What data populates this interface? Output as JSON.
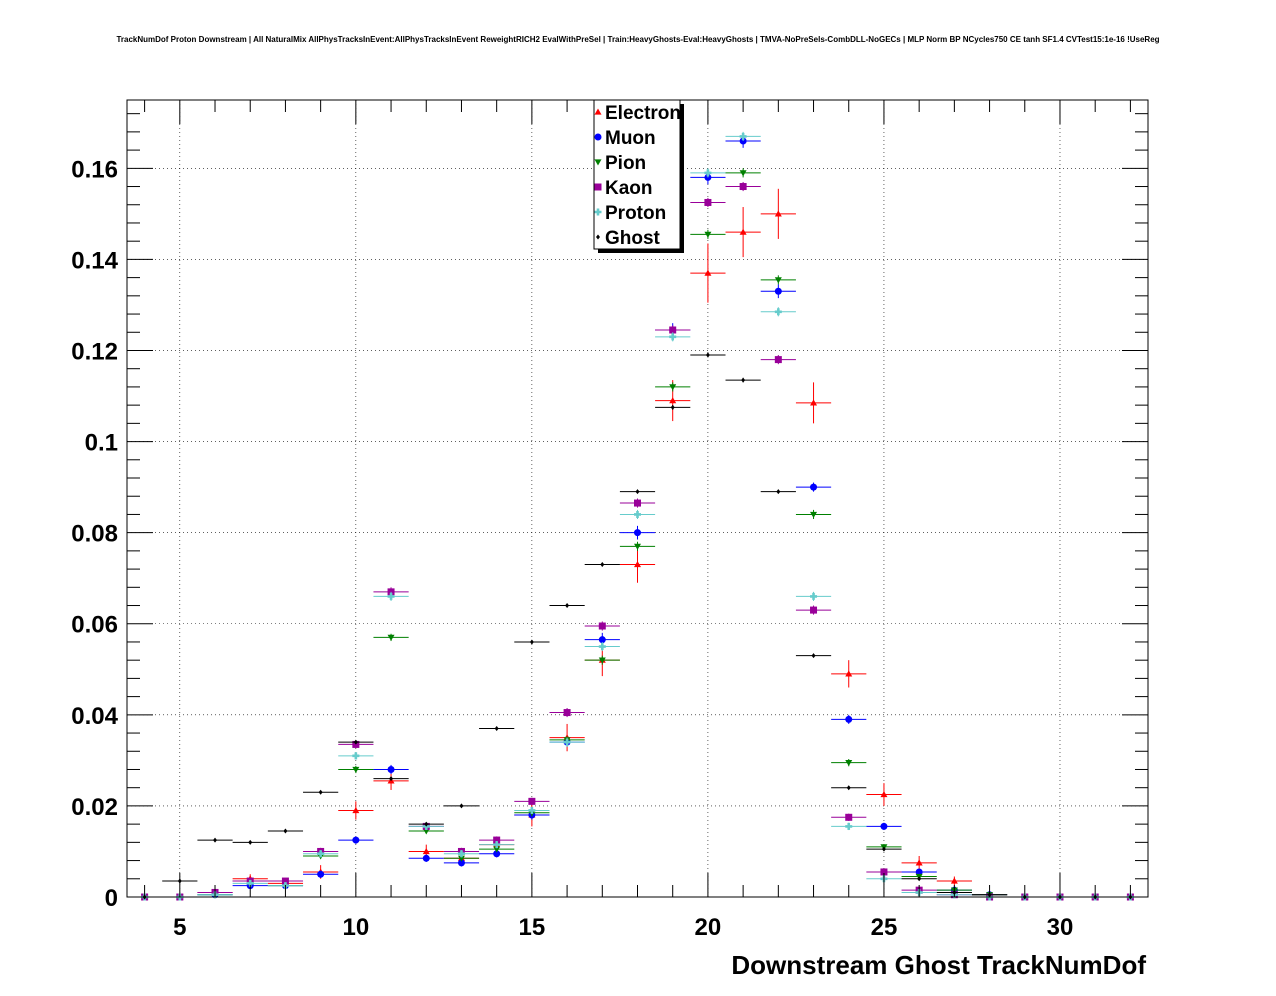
{
  "chart_data": {
    "type": "scatter",
    "title": "TrackNumDof Proton Downstream | All NaturalMix AllPhysTracksInEvent:AllPhysTracksInEvent ReweightRICH2 EvalWithPreSel | Train:HeavyGhosts-Eval:HeavyGhosts | TMVA-NoPreSels-CombDLL-NoGECs | MLP Norm BP NCycles750 CE tanh SF1.4 CVTest15:1e-16 !UseReg",
    "xlabel": "Downstream Ghost TrackNumDof",
    "ylabel": "",
    "xlim": [
      3.5,
      32.5
    ],
    "ylim": [
      0,
      0.175
    ],
    "grid": true,
    "legend_position": "top-center",
    "x_ticks": [
      5,
      10,
      15,
      20,
      25,
      30
    ],
    "x_tick_labels": [
      "5",
      "10",
      "15",
      "20",
      "25",
      "30"
    ],
    "y_ticks": [
      0,
      0.02,
      0.04,
      0.06,
      0.08,
      0.1,
      0.12,
      0.14,
      0.16
    ],
    "y_tick_labels": [
      "0",
      "0.02",
      "0.04",
      "0.06",
      "0.08",
      "0.1",
      "0.12",
      "0.14",
      "0.16"
    ],
    "x": [
      4,
      5,
      6,
      7,
      8,
      9,
      10,
      11,
      12,
      13,
      14,
      15,
      16,
      17,
      18,
      19,
      20,
      21,
      22,
      23,
      24,
      25,
      26,
      27,
      28,
      29,
      30,
      31,
      32
    ],
    "series": [
      {
        "name": "Electron",
        "color": "#ff0000",
        "marker": "triangle-up",
        "values": [
          0,
          0,
          0.001,
          0.004,
          0.003,
          0.0055,
          0.019,
          0.0255,
          0.01,
          0.0085,
          0.0115,
          0.018,
          0.035,
          0.052,
          0.073,
          0.109,
          0.137,
          0.146,
          0.15,
          0.1085,
          0.049,
          0.0225,
          0.0075,
          0.0035,
          0.0005,
          0,
          0,
          0,
          0
        ],
        "errors": [
          0,
          0,
          0.0005,
          0.001,
          0.001,
          0.0015,
          0.002,
          0.002,
          0.0015,
          0.0015,
          0.0015,
          0.0025,
          0.003,
          0.0035,
          0.004,
          0.0045,
          0.0065,
          0.0055,
          0.0055,
          0.0045,
          0.003,
          0.0025,
          0.0015,
          0.001,
          0.0005,
          0,
          0,
          0,
          0
        ]
      },
      {
        "name": "Muon",
        "color": "#0000ff",
        "marker": "circle",
        "values": [
          0,
          0,
          0.0005,
          0.0025,
          0.0025,
          0.005,
          0.0125,
          0.028,
          0.0085,
          0.0075,
          0.0095,
          0.018,
          0.034,
          0.0565,
          0.08,
          0.1245,
          0.158,
          0.166,
          0.133,
          0.09,
          0.039,
          0.0155,
          0.0055,
          0.0015,
          0.0005,
          0,
          0,
          0,
          0
        ],
        "errors": [
          0,
          0,
          0.0003,
          0.0005,
          0.0005,
          0.0008,
          0.0008,
          0.001,
          0.0008,
          0.0008,
          0.0008,
          0.001,
          0.001,
          0.0015,
          0.0015,
          0.0015,
          0.0015,
          0.0015,
          0.0015,
          0.001,
          0.001,
          0.0008,
          0.0005,
          0.0003,
          0.0002,
          0,
          0,
          0,
          0
        ]
      },
      {
        "name": "Pion",
        "color": "#008000",
        "marker": "triangle-down",
        "values": [
          0,
          0,
          0.0005,
          0.0035,
          0.0025,
          0.009,
          0.028,
          0.057,
          0.0145,
          0.0085,
          0.0105,
          0.0185,
          0.0345,
          0.052,
          0.077,
          0.112,
          0.1455,
          0.159,
          0.1355,
          0.084,
          0.0295,
          0.011,
          0.0045,
          0.0015,
          0.0005,
          0,
          0,
          0,
          0
        ],
        "errors": [
          0,
          0,
          0.0003,
          0.0005,
          0.0005,
          0.0005,
          0.0008,
          0.0008,
          0.0005,
          0.0005,
          0.0005,
          0.0008,
          0.0008,
          0.001,
          0.001,
          0.001,
          0.001,
          0.001,
          0.001,
          0.001,
          0.0008,
          0.0005,
          0.0005,
          0.0003,
          0.0002,
          0,
          0,
          0,
          0
        ]
      },
      {
        "name": "Kaon",
        "color": "#990099",
        "marker": "square",
        "values": [
          0,
          0,
          0.001,
          0.0035,
          0.0035,
          0.01,
          0.0335,
          0.067,
          0.0155,
          0.01,
          0.0125,
          0.021,
          0.0405,
          0.0595,
          0.0865,
          0.1245,
          0.1525,
          0.156,
          0.118,
          0.063,
          0.0175,
          0.0055,
          0.0015,
          0.0005,
          0,
          0,
          0,
          0,
          0
        ],
        "errors": [
          0,
          0,
          0.0003,
          0.0005,
          0.0005,
          0.0008,
          0.0008,
          0.001,
          0.0008,
          0.0008,
          0.0008,
          0.0008,
          0.001,
          0.001,
          0.001,
          0.001,
          0.001,
          0.001,
          0.001,
          0.001,
          0.0008,
          0.0005,
          0.0003,
          0.0002,
          0,
          0,
          0,
          0,
          0
        ]
      },
      {
        "name": "Proton",
        "color": "#66cccc",
        "marker": "cross",
        "values": [
          0,
          0,
          0.0005,
          0.003,
          0.0025,
          0.0095,
          0.031,
          0.066,
          0.0155,
          0.0095,
          0.0115,
          0.019,
          0.034,
          0.055,
          0.084,
          0.123,
          0.159,
          0.167,
          0.1285,
          0.066,
          0.0155,
          0.004,
          0.001,
          0.0005,
          0,
          0,
          0,
          0,
          0
        ],
        "errors": [
          0,
          0,
          0.0003,
          0.0005,
          0.0005,
          0.0008,
          0.0008,
          0.001,
          0.0008,
          0.0008,
          0.0008,
          0.0008,
          0.001,
          0.001,
          0.001,
          0.001,
          0.001,
          0.001,
          0.001,
          0.001,
          0.0008,
          0.0005,
          0.0003,
          0.0002,
          0,
          0,
          0,
          0,
          0
        ]
      },
      {
        "name": "Ghost",
        "color": "#000000",
        "marker": "diamond",
        "values": [
          0,
          0.0035,
          0.0125,
          0.012,
          0.0145,
          0.023,
          0.034,
          0.026,
          0.016,
          0.02,
          0.037,
          0.056,
          0.064,
          0.073,
          0.089,
          0.1075,
          0.119,
          0.1135,
          0.089,
          0.053,
          0.024,
          0.0105,
          0.004,
          0.001,
          0.0005,
          0,
          0,
          0,
          0
        ],
        "errors": [
          0,
          0.0003,
          0.0003,
          0.0003,
          0.0003,
          0.0003,
          0.0004,
          0.0003,
          0.0003,
          0.0003,
          0.0004,
          0.0004,
          0.0004,
          0.0004,
          0.0004,
          0.0005,
          0.0005,
          0.0005,
          0.0004,
          0.0004,
          0.0003,
          0.0003,
          0.0002,
          0.0001,
          0.0001,
          0,
          0,
          0,
          0
        ]
      }
    ]
  }
}
